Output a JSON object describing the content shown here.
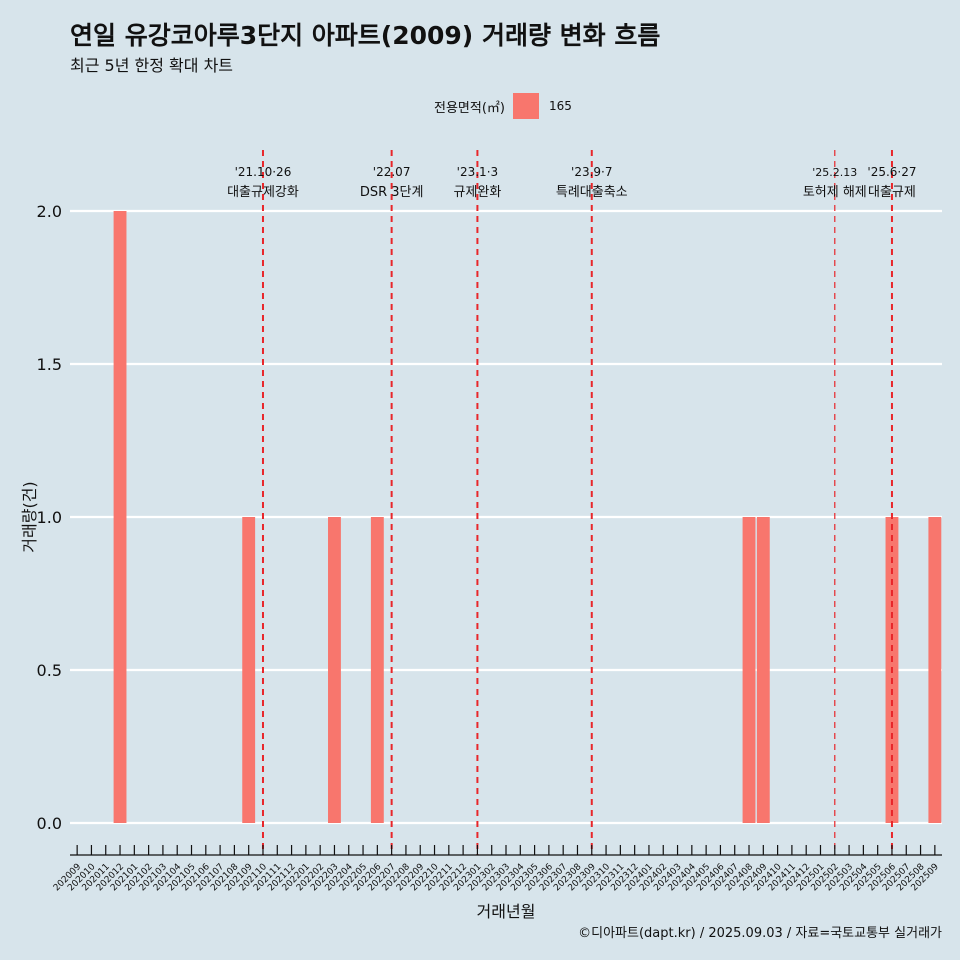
{
  "chart_data": {
    "type": "bar",
    "title": "연일 유강코아루3단지 아파트(2009) 거래량 변화 흐름",
    "subtitle": "최근 5년 한정 확대 차트",
    "xlabel": "거래년월",
    "ylabel": "거래량(건)",
    "caption": "©디아파트(dapt.kr) / 2025.09.03 / 자료=국토교통부 실거래가",
    "legend": {
      "title": "전용면적(㎡)",
      "position": "top",
      "entries": [
        {
          "label": "165",
          "color": "#f8766d"
        }
      ]
    },
    "ylim": [
      0,
      2
    ],
    "yticks": [
      0.0,
      0.5,
      1.0,
      1.5,
      2.0
    ],
    "ytick_labels": [
      "0.0",
      "0.5",
      "1.0",
      "1.5",
      "2.0"
    ],
    "grid": true,
    "categories": [
      "202009",
      "202010",
      "202011",
      "202012",
      "202101",
      "202102",
      "202103",
      "202104",
      "202105",
      "202106",
      "202107",
      "202108",
      "202109",
      "202110",
      "202111",
      "202112",
      "202201",
      "202202",
      "202203",
      "202204",
      "202205",
      "202206",
      "202207",
      "202208",
      "202209",
      "202210",
      "202211",
      "202212",
      "202301",
      "202302",
      "202303",
      "202304",
      "202305",
      "202306",
      "202307",
      "202308",
      "202309",
      "202310",
      "202311",
      "202312",
      "202401",
      "202402",
      "202403",
      "202404",
      "202405",
      "202406",
      "202407",
      "202408",
      "202409",
      "202410",
      "202411",
      "202412",
      "202501",
      "202502",
      "202503",
      "202504",
      "202505",
      "202506",
      "202507",
      "202508",
      "202509"
    ],
    "series": [
      {
        "name": "165",
        "color": "#f8766d",
        "values": [
          0,
          0,
          0,
          2,
          0,
          0,
          0,
          0,
          0,
          0,
          0,
          0,
          1,
          0,
          0,
          0,
          0,
          0,
          1,
          0,
          0,
          1,
          0,
          0,
          0,
          0,
          0,
          0,
          0,
          0,
          0,
          0,
          0,
          0,
          0,
          0,
          0,
          0,
          0,
          0,
          0,
          0,
          0,
          0,
          0,
          0,
          0,
          1,
          1,
          0,
          0,
          0,
          0,
          0,
          0,
          0,
          0,
          1,
          0,
          0,
          1
        ]
      }
    ],
    "annotations": [
      {
        "x": 13.5,
        "date": "'21.10·26",
        "label": "대출규제강화"
      },
      {
        "x": 22.5,
        "date": "'22.07",
        "label": "DSR 3단계"
      },
      {
        "x": 28.5,
        "date": "'23.1·3",
        "label": "규제완화"
      },
      {
        "x": 36.5,
        "date": "'23.9·7",
        "label": "특례대출축소"
      },
      {
        "x": 53.5,
        "date": "'25.2.13",
        "label": "토허제 해제"
      },
      {
        "x": 57.5,
        "date": "'25.6·27",
        "label": "대출규제"
      }
    ],
    "annotation_color": "#e8262a"
  }
}
